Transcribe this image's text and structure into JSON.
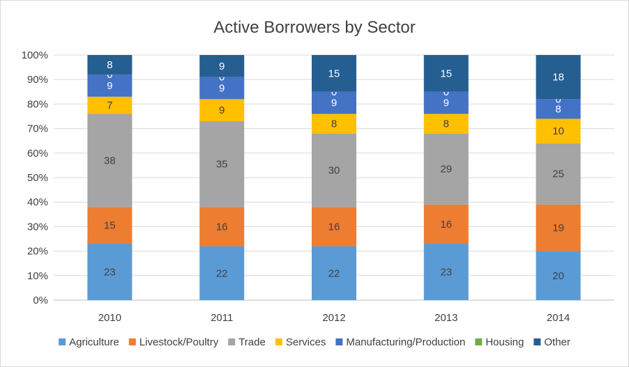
{
  "chart_data": {
    "type": "bar",
    "stacked": "percent",
    "title": "Active Borrowers by Sector",
    "xlabel": "",
    "ylabel": "",
    "ylim": [
      0,
      100
    ],
    "y_ticks": [
      "0%",
      "10%",
      "20%",
      "30%",
      "40%",
      "50%",
      "60%",
      "70%",
      "80%",
      "90%",
      "100%"
    ],
    "grid": true,
    "legend_position": "bottom",
    "categories": [
      "2010",
      "2011",
      "2012",
      "2013",
      "2014"
    ],
    "series": [
      {
        "name": "Agriculture",
        "color": "#5b9bd5",
        "label_color": "#404040",
        "values": [
          23,
          22,
          22,
          23,
          20
        ]
      },
      {
        "name": "Livestock/Poultry",
        "color": "#ed7d31",
        "label_color": "#404040",
        "values": [
          15,
          16,
          16,
          16,
          19
        ]
      },
      {
        "name": "Trade",
        "color": "#a5a5a5",
        "label_color": "#404040",
        "values": [
          38,
          35,
          30,
          29,
          25
        ]
      },
      {
        "name": "Services",
        "color": "#ffc000",
        "label_color": "#404040",
        "values": [
          7,
          9,
          8,
          8,
          10
        ]
      },
      {
        "name": "Manufacturing/Production",
        "color": "#4472c4",
        "label_color": "#ffffff",
        "values": [
          9,
          9,
          9,
          9,
          8
        ]
      },
      {
        "name": "Housing",
        "color": "#70ad47",
        "label_color": "#ffffff",
        "values": [
          0,
          0,
          0,
          0,
          0
        ]
      },
      {
        "name": "Other",
        "color": "#255e91",
        "label_color": "#ffffff",
        "values": [
          8,
          9,
          15,
          15,
          18
        ]
      }
    ]
  }
}
